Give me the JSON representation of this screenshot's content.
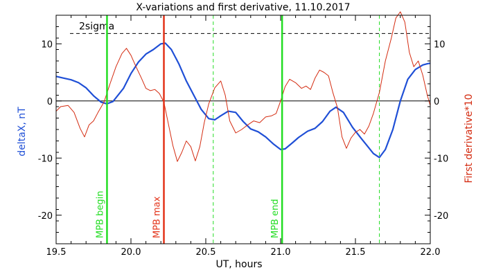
{
  "chart_data": {
    "type": "line",
    "title": "X-variations and first derivative, 11.10.2017",
    "xlabel": "UT, hours",
    "ylabel_left": "deltaX, nT",
    "ylabel_right": "First derivative*10",
    "xlim": [
      19.5,
      22.0
    ],
    "ylim": [
      -25,
      15
    ],
    "x_ticks": [
      19.5,
      20.0,
      20.5,
      21.0,
      21.5,
      22.0
    ],
    "x_tick_labels": [
      "19.5",
      "20.0",
      "20.5",
      "21.0",
      "21.5",
      "22.0"
    ],
    "y_ticks": [
      10,
      0,
      -10,
      -20
    ],
    "y_tick_labels": [
      "10",
      "0",
      "-10",
      "-20"
    ],
    "threshold": {
      "label": "2sigma",
      "value": 11.8,
      "style": "dashed",
      "color": "#000000"
    },
    "zero_line": 0,
    "colors": {
      "deltaX": "#1f4fd6",
      "derivative": "#d42b10",
      "mpb": "#22dd22",
      "max": "#e33218",
      "dashed": "#22dd22"
    },
    "markers": [
      {
        "x": 19.84,
        "label": "MPB begin",
        "color": "#22dd22",
        "style": "solid"
      },
      {
        "x": 20.22,
        "label": "MPB max",
        "color": "#e33218",
        "style": "solid"
      },
      {
        "x": 21.01,
        "label": "MPB end",
        "color": "#22dd22",
        "style": "solid"
      }
    ],
    "dashed_markers": [
      20.55,
      21.66
    ],
    "series": [
      {
        "key": "deltaX",
        "color": "#1f4fd6",
        "points": [
          [
            19.5,
            4.3
          ],
          [
            19.55,
            4.0
          ],
          [
            19.6,
            3.7
          ],
          [
            19.65,
            3.2
          ],
          [
            19.7,
            2.3
          ],
          [
            19.75,
            0.9
          ],
          [
            19.8,
            -0.2
          ],
          [
            19.84,
            -0.5
          ],
          [
            19.88,
            -0.1
          ],
          [
            19.95,
            2.2
          ],
          [
            20.0,
            4.8
          ],
          [
            20.05,
            6.8
          ],
          [
            20.1,
            8.2
          ],
          [
            20.15,
            9.0
          ],
          [
            20.2,
            10.0
          ],
          [
            20.23,
            10.1
          ],
          [
            20.27,
            9.0
          ],
          [
            20.32,
            6.5
          ],
          [
            20.37,
            3.5
          ],
          [
            20.42,
            1.0
          ],
          [
            20.47,
            -1.5
          ],
          [
            20.52,
            -3.1
          ],
          [
            20.56,
            -3.3
          ],
          [
            20.6,
            -2.6
          ],
          [
            20.65,
            -1.8
          ],
          [
            20.7,
            -2.0
          ],
          [
            20.75,
            -3.6
          ],
          [
            20.8,
            -4.9
          ],
          [
            20.85,
            -5.4
          ],
          [
            20.9,
            -6.3
          ],
          [
            20.95,
            -7.5
          ],
          [
            21.0,
            -8.5
          ],
          [
            21.03,
            -8.4
          ],
          [
            21.08,
            -7.3
          ],
          [
            21.12,
            -6.4
          ],
          [
            21.18,
            -5.3
          ],
          [
            21.23,
            -4.8
          ],
          [
            21.28,
            -3.6
          ],
          [
            21.33,
            -1.8
          ],
          [
            21.37,
            -1.1
          ],
          [
            21.42,
            -2.0
          ],
          [
            21.48,
            -4.6
          ],
          [
            21.54,
            -6.6
          ],
          [
            21.58,
            -7.9
          ],
          [
            21.62,
            -9.2
          ],
          [
            21.66,
            -9.9
          ],
          [
            21.7,
            -8.5
          ],
          [
            21.75,
            -5.0
          ],
          [
            21.8,
            0.0
          ],
          [
            21.85,
            3.8
          ],
          [
            21.9,
            5.5
          ],
          [
            21.95,
            6.3
          ],
          [
            21.98,
            6.5
          ],
          [
            22.0,
            6.6
          ]
        ]
      },
      {
        "key": "derivative",
        "color": "#d42b10",
        "points": [
          [
            19.5,
            -1.8
          ],
          [
            19.53,
            -1.0
          ],
          [
            19.58,
            -0.8
          ],
          [
            19.62,
            -2.0
          ],
          [
            19.66,
            -4.8
          ],
          [
            19.69,
            -6.3
          ],
          [
            19.72,
            -4.2
          ],
          [
            19.75,
            -3.5
          ],
          [
            19.78,
            -2.0
          ],
          [
            19.82,
            -0.2
          ],
          [
            19.86,
            3.0
          ],
          [
            19.9,
            6.0
          ],
          [
            19.94,
            8.3
          ],
          [
            19.97,
            9.2
          ],
          [
            20.0,
            8.0
          ],
          [
            20.03,
            6.2
          ],
          [
            20.07,
            4.0
          ],
          [
            20.1,
            2.2
          ],
          [
            20.13,
            1.8
          ],
          [
            20.16,
            2.0
          ],
          [
            20.19,
            1.3
          ],
          [
            20.22,
            -0.2
          ],
          [
            20.25,
            -4.0
          ],
          [
            20.28,
            -7.8
          ],
          [
            20.31,
            -10.6
          ],
          [
            20.34,
            -9.0
          ],
          [
            20.37,
            -7.0
          ],
          [
            20.4,
            -8.0
          ],
          [
            20.43,
            -10.5
          ],
          [
            20.46,
            -8.0
          ],
          [
            20.49,
            -3.8
          ],
          [
            20.52,
            -0.5
          ],
          [
            20.56,
            2.3
          ],
          [
            20.6,
            3.5
          ],
          [
            20.63,
            1.0
          ],
          [
            20.66,
            -3.5
          ],
          [
            20.7,
            -5.6
          ],
          [
            20.74,
            -5.0
          ],
          [
            20.78,
            -4.2
          ],
          [
            20.82,
            -3.5
          ],
          [
            20.86,
            -3.8
          ],
          [
            20.9,
            -2.8
          ],
          [
            20.94,
            -2.6
          ],
          [
            20.97,
            -2.2
          ],
          [
            21.0,
            0.0
          ],
          [
            21.03,
            2.5
          ],
          [
            21.06,
            3.8
          ],
          [
            21.1,
            3.2
          ],
          [
            21.14,
            2.2
          ],
          [
            21.17,
            2.6
          ],
          [
            21.2,
            2.0
          ],
          [
            21.23,
            4.0
          ],
          [
            21.26,
            5.4
          ],
          [
            21.29,
            5.0
          ],
          [
            21.32,
            4.4
          ],
          [
            21.35,
            1.4
          ],
          [
            21.38,
            -1.2
          ],
          [
            21.41,
            -6.3
          ],
          [
            21.44,
            -8.3
          ],
          [
            21.47,
            -6.5
          ],
          [
            21.5,
            -5.5
          ],
          [
            21.53,
            -5.0
          ],
          [
            21.56,
            -5.8
          ],
          [
            21.59,
            -4.4
          ],
          [
            21.62,
            -2.2
          ],
          [
            21.66,
            1.5
          ],
          [
            21.7,
            7.0
          ],
          [
            21.74,
            11.0
          ],
          [
            21.77,
            14.5
          ],
          [
            21.8,
            15.6
          ],
          [
            21.83,
            13.8
          ],
          [
            21.86,
            8.5
          ],
          [
            21.89,
            6.0
          ],
          [
            21.92,
            7.0
          ],
          [
            21.95,
            4.5
          ],
          [
            21.98,
            1.0
          ],
          [
            22.0,
            -0.8
          ]
        ]
      }
    ]
  }
}
